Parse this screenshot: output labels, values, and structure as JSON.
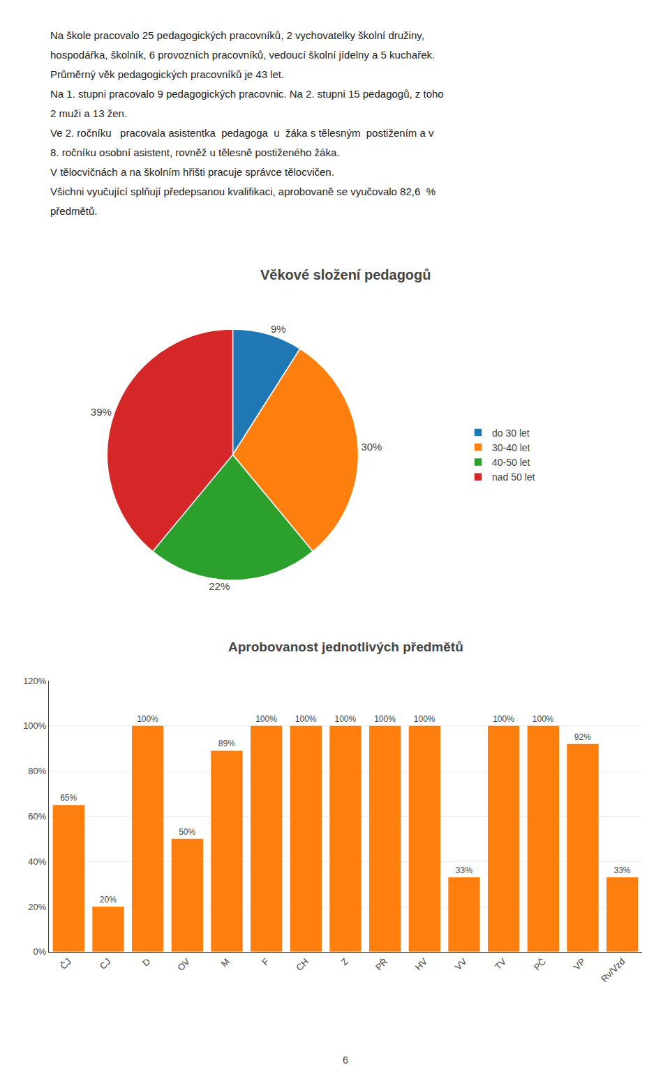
{
  "annotations": [
    "Na škole pracovalo 25 pedagogických pracovníků, 2 vychovatelky školní družiny,",
    "hospodářka, školník, 6 provozních pracovníků, vedoucí školní jídelny a 5 kuchařek.",
    "Průměrný věk pedagogických pracovníků je 43 let.",
    "Na 1. stupni pracovalo 9 pedagogických pracovnic. Na 2. stupni 15 pedagogů, z toho",
    "2 muži a 13 žen.",
    "Ve 2. ročníku   pracovala asistentka  pedagoga  u  žáka s tělesným  postižením a v",
    "8. ročníku osobní asistent, rovněž u tělesně postiženého žáka.",
    "V tělocvičnách a na školním hřišti pracuje správce tělocvičen.",
    "Všichni vyučující splňují předepsanou kvalifikaci, aprobovaně se vyučovalo 82,6  %",
    "předmětů.",
    "6"
  ],
  "chart_data": [
    {
      "type": "pie",
      "title": "Věkové složení pedagogů",
      "categories": [
        "do 30 let",
        "30-40 let",
        "40-50 let",
        "nad 50 let"
      ],
      "values": [
        9,
        30,
        22,
        39
      ],
      "value_labels": [
        "9%",
        "30%",
        "22%",
        "39%"
      ],
      "data_labels": true,
      "legend": "right"
    },
    {
      "type": "bar",
      "title": "Aprobovanost jednotlivých předmětů",
      "categories": [
        "ČJ",
        "CJ",
        "D",
        "OV",
        "M",
        "F",
        "CH",
        "Z",
        "PŘ",
        "HV",
        "VV",
        "TV",
        "PČ",
        "VP",
        "Rv/Vzd"
      ],
      "values": [
        65,
        20,
        100,
        50,
        89,
        100,
        100,
        100,
        100,
        100,
        33,
        100,
        100,
        92,
        33
      ],
      "value_labels": [
        "65%",
        "20%",
        "100%",
        "50%",
        "89%",
        "100%",
        "100%",
        "100%",
        "100%",
        "100%",
        "33%",
        "100%",
        "100%",
        "92%",
        "33%"
      ],
      "data_labels": true,
      "ylim": [
        0,
        120
      ],
      "yticks": [
        {
          "value": 0,
          "label": "0%"
        },
        {
          "value": 20,
          "label": "20%"
        },
        {
          "value": 40,
          "label": "40%"
        },
        {
          "value": 60,
          "label": "60%"
        },
        {
          "value": 80,
          "label": "80%"
        },
        {
          "value": 100,
          "label": "100%"
        },
        {
          "value": 120,
          "label": "120%"
        }
      ],
      "grid": true
    }
  ]
}
